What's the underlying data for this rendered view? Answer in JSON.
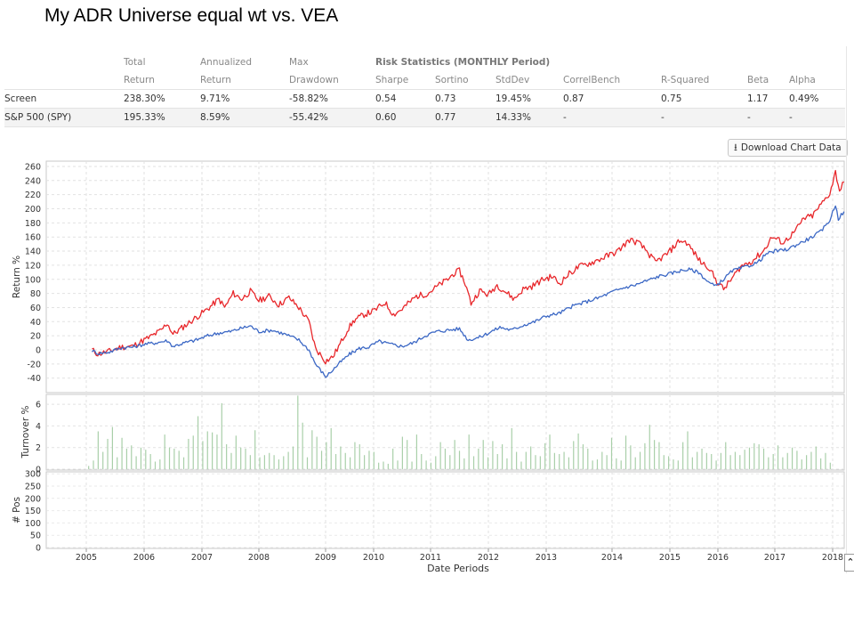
{
  "slide_title": "My ADR Universe equal wt vs. VEA",
  "stats_table": {
    "header_row1": [
      "",
      "Total",
      "Annualized",
      "Max",
      "Risk Statistics (MONTHLY Period)",
      "",
      "",
      "",
      "",
      "",
      ""
    ],
    "header_row2": [
      "",
      "Return",
      "Return",
      "Drawdown",
      "Sharpe",
      "Sortino",
      "StdDev",
      "CorrelBench",
      "R-Squared",
      "Beta",
      "Alpha"
    ],
    "rows": [
      [
        "Screen",
        "238.30%",
        "9.71%",
        "-58.82%",
        "0.54",
        "0.73",
        "19.45%",
        "0.87",
        "0.75",
        "1.17",
        "0.49%"
      ],
      [
        "S&P 500 (SPY)",
        "195.33%",
        "8.59%",
        "-55.42%",
        "0.60",
        "0.77",
        "14.33%",
        "-",
        "-",
        "-",
        "-"
      ]
    ]
  },
  "download_button": {
    "label": "Download Chart Data",
    "icon": "download-icon"
  },
  "colors": {
    "screen": "#e8272b",
    "benchmark": "#3c68c5",
    "turnover": "#a9cfa9",
    "positions": "#d9d9d9",
    "grid": "#e2e2e2"
  },
  "chart_data": [
    {
      "type": "line",
      "ylabel": "Return %",
      "ylim": [
        -50,
        265
      ],
      "yticks": [
        "260",
        "240",
        "220",
        "200",
        "180",
        "160",
        "140",
        "120",
        "100",
        "80",
        "60",
        "40",
        "20",
        "0",
        "-20",
        "-40"
      ],
      "grid": true,
      "series": [
        {
          "color": "#e8272b",
          "points": [
            [
              2004.95,
              -3
            ],
            [
              2005.1,
              0
            ],
            [
              2005.2,
              -6
            ],
            [
              2005.4,
              -2
            ],
            [
              2005.6,
              4
            ],
            [
              2005.8,
              5
            ],
            [
              2005.95,
              12
            ],
            [
              2006.1,
              18
            ],
            [
              2006.3,
              28
            ],
            [
              2006.4,
              38
            ],
            [
              2006.5,
              22
            ],
            [
              2006.7,
              34
            ],
            [
              2006.9,
              46
            ],
            [
              2007.1,
              58
            ],
            [
              2007.3,
              72
            ],
            [
              2007.4,
              60
            ],
            [
              2007.55,
              80
            ],
            [
              2007.7,
              72
            ],
            [
              2007.85,
              83
            ],
            [
              2008.0,
              70
            ],
            [
              2008.15,
              76
            ],
            [
              2008.3,
              64
            ],
            [
              2008.45,
              74
            ],
            [
              2008.6,
              60
            ],
            [
              2008.75,
              40
            ],
            [
              2008.85,
              2
            ],
            [
              2009.0,
              -16
            ],
            [
              2009.15,
              -10
            ],
            [
              2009.3,
              8
            ],
            [
              2009.45,
              28
            ],
            [
              2009.6,
              42
            ],
            [
              2009.8,
              50
            ],
            [
              2010.0,
              55
            ],
            [
              2010.2,
              67
            ],
            [
              2010.35,
              50
            ],
            [
              2010.5,
              58
            ],
            [
              2010.75,
              76
            ],
            [
              2010.95,
              80
            ],
            [
              2011.15,
              92
            ],
            [
              2011.3,
              100
            ],
            [
              2011.4,
              108
            ],
            [
              2011.5,
              112
            ],
            [
              2011.6,
              94
            ],
            [
              2011.7,
              66
            ],
            [
              2011.85,
              84
            ],
            [
              2012.0,
              78
            ],
            [
              2012.15,
              92
            ],
            [
              2012.3,
              82
            ],
            [
              2012.45,
              72
            ],
            [
              2012.6,
              86
            ],
            [
              2012.75,
              90
            ],
            [
              2012.95,
              100
            ],
            [
              2013.1,
              104
            ],
            [
              2013.2,
              94
            ],
            [
              2013.35,
              108
            ],
            [
              2013.5,
              118
            ],
            [
              2013.7,
              124
            ],
            [
              2013.9,
              132
            ],
            [
              2014.1,
              140
            ],
            [
              2014.3,
              156
            ],
            [
              2014.45,
              152
            ],
            [
              2014.6,
              140
            ],
            [
              2014.75,
              124
            ],
            [
              2014.95,
              136
            ],
            [
              2015.2,
              155
            ],
            [
              2015.35,
              152
            ],
            [
              2015.5,
              138
            ],
            [
              2015.65,
              124
            ],
            [
              2015.8,
              118
            ],
            [
              2015.95,
              100
            ],
            [
              2016.1,
              86
            ],
            [
              2016.2,
              96
            ],
            [
              2016.4,
              118
            ],
            [
              2016.6,
              126
            ],
            [
              2016.8,
              140
            ],
            [
              2016.95,
              160
            ],
            [
              2017.15,
              152
            ],
            [
              2017.35,
              168
            ],
            [
              2017.5,
              186
            ],
            [
              2017.65,
              190
            ],
            [
              2017.8,
              206
            ],
            [
              2017.95,
              222
            ],
            [
              2018.05,
              252
            ],
            [
              2018.12,
              226
            ],
            [
              2018.2,
              238
            ]
          ]
        },
        {
          "color": "#3c68c5",
          "points": [
            [
              2004.95,
              -2
            ],
            [
              2005.1,
              -1
            ],
            [
              2005.2,
              -5
            ],
            [
              2005.4,
              -3
            ],
            [
              2005.6,
              3
            ],
            [
              2005.8,
              4
            ],
            [
              2006.0,
              8
            ],
            [
              2006.2,
              10
            ],
            [
              2006.4,
              13
            ],
            [
              2006.5,
              5
            ],
            [
              2006.7,
              10
            ],
            [
              2006.9,
              14
            ],
            [
              2007.1,
              20
            ],
            [
              2007.3,
              24
            ],
            [
              2007.5,
              26
            ],
            [
              2007.7,
              31
            ],
            [
              2007.85,
              34
            ],
            [
              2008.0,
              26
            ],
            [
              2008.2,
              28
            ],
            [
              2008.4,
              22
            ],
            [
              2008.6,
              14
            ],
            [
              2008.75,
              0
            ],
            [
              2008.85,
              -20
            ],
            [
              2009.0,
              -38
            ],
            [
              2009.1,
              -32
            ],
            [
              2009.3,
              -18
            ],
            [
              2009.5,
              -6
            ],
            [
              2009.7,
              2
            ],
            [
              2009.9,
              4
            ],
            [
              2010.1,
              12
            ],
            [
              2010.3,
              8
            ],
            [
              2010.5,
              5
            ],
            [
              2010.7,
              10
            ],
            [
              2010.9,
              20
            ],
            [
              2011.1,
              26
            ],
            [
              2011.3,
              28
            ],
            [
              2011.5,
              30
            ],
            [
              2011.65,
              14
            ],
            [
              2011.85,
              18
            ],
            [
              2012.0,
              24
            ],
            [
              2012.2,
              32
            ],
            [
              2012.4,
              28
            ],
            [
              2012.6,
              35
            ],
            [
              2012.8,
              40
            ],
            [
              2013.0,
              48
            ],
            [
              2013.2,
              52
            ],
            [
              2013.4,
              62
            ],
            [
              2013.6,
              68
            ],
            [
              2013.8,
              74
            ],
            [
              2014.0,
              82
            ],
            [
              2014.2,
              88
            ],
            [
              2014.4,
              92
            ],
            [
              2014.6,
              98
            ],
            [
              2014.8,
              104
            ],
            [
              2015.0,
              108
            ],
            [
              2015.2,
              112
            ],
            [
              2015.4,
              114
            ],
            [
              2015.6,
              110
            ],
            [
              2015.8,
              96
            ],
            [
              2015.95,
              90
            ],
            [
              2016.1,
              100
            ],
            [
              2016.25,
              112
            ],
            [
              2016.5,
              118
            ],
            [
              2016.7,
              124
            ],
            [
              2016.85,
              136
            ],
            [
              2017.0,
              140
            ],
            [
              2017.2,
              142
            ],
            [
              2017.4,
              150
            ],
            [
              2017.6,
              158
            ],
            [
              2017.8,
              168
            ],
            [
              2017.95,
              184
            ],
            [
              2018.05,
              206
            ],
            [
              2018.1,
              186
            ],
            [
              2018.2,
              196
            ]
          ]
        }
      ]
    },
    {
      "type": "bar",
      "ylabel": "Turnover %",
      "ylim": [
        0,
        7
      ],
      "yticks": [
        "6",
        "4",
        "2",
        "0"
      ],
      "values": [
        0.3,
        0.8,
        3.5,
        1.6,
        2.8,
        3.9,
        1.1,
        2.9,
        1.9,
        2.2,
        1.2,
        2.0,
        1.8,
        1.4,
        0.7,
        0.9,
        3.2,
        2.0,
        1.9,
        1.7,
        1.1,
        2.8,
        3.1,
        4.9,
        2.6,
        3.5,
        3.4,
        3.2,
        6.1,
        2.3,
        1.5,
        3.1,
        2.0,
        1.9,
        1.3,
        3.6,
        1.1,
        1.3,
        1.5,
        1.3,
        0.9,
        1.2,
        1.6,
        2.1,
        6.8,
        4.3,
        1.1,
        3.6,
        3.0,
        1.7,
        2.5,
        3.8,
        1.4,
        2.1,
        1.5,
        1.1,
        2.5,
        2.3,
        1.3,
        1.7,
        1.6,
        0.6,
        0.7,
        0.5,
        1.9,
        0.8,
        3.0,
        2.7,
        0.7,
        3.2,
        1.4,
        0.8,
        0.6,
        1.2,
        2.5,
        1.9,
        1.3,
        2.7,
        1.7,
        1.0,
        3.2,
        1.2,
        1.9,
        2.7,
        1.1,
        2.6,
        1.4,
        2.3,
        1.0,
        3.8,
        1.6,
        0.7,
        1.6,
        2.1,
        1.3,
        1.2,
        2.4,
        3.2,
        1.5,
        1.4,
        1.6,
        1.1,
        2.6,
        3.3,
        2.3,
        1.9,
        0.8,
        0.9,
        1.6,
        1.3,
        2.9,
        1.0,
        0.8,
        3.1,
        2.2,
        1.1,
        1.6,
        2.4,
        4.1,
        2.7,
        2.5,
        1.3,
        1.2,
        0.9,
        0.8,
        2.5,
        3.5,
        1.1,
        1.6,
        1.9,
        1.5,
        1.4,
        0.8,
        1.5,
        2.5,
        1.3,
        1.6,
        1.3,
        1.8,
        2.0,
        2.4,
        2.3,
        1.9,
        1.1,
        1.4,
        2.2,
        1.1,
        1.5,
        2.0,
        1.7,
        0.9,
        1.3,
        1.6,
        2.1,
        1.0,
        1.5,
        0.6
      ]
    },
    {
      "type": "area",
      "ylabel": "# Pos",
      "xlabel": "Date Periods",
      "ylim": [
        0,
        300
      ],
      "yticks": [
        "300",
        "250",
        "200",
        "150",
        "100",
        "50",
        "0"
      ],
      "xticks": [
        "2005",
        "2006",
        "2007",
        "2008",
        "2009",
        "2010",
        "2011",
        "2012",
        "2013",
        "2014",
        "2015",
        "2016",
        "2017",
        "2018"
      ],
      "points": [
        [
          2004.95,
          265
        ],
        [
          2005.0,
          285
        ],
        [
          2005.1,
          292
        ],
        [
          2005.3,
          290
        ],
        [
          2005.5,
          282
        ],
        [
          2006.0,
          276
        ],
        [
          2006.5,
          277
        ],
        [
          2007.0,
          275
        ],
        [
          2007.4,
          274
        ],
        [
          2007.45,
          265
        ],
        [
          2007.6,
          258
        ],
        [
          2008.0,
          230
        ],
        [
          2008.4,
          215
        ],
        [
          2008.8,
          207
        ],
        [
          2009.0,
          198
        ],
        [
          2009.05,
          188
        ],
        [
          2009.3,
          186
        ],
        [
          2009.8,
          182
        ],
        [
          2010.0,
          180
        ],
        [
          2010.5,
          182
        ],
        [
          2011.0,
          176
        ],
        [
          2011.5,
          178
        ],
        [
          2012.0,
          174
        ],
        [
          2012.5,
          170
        ],
        [
          2012.8,
          160
        ],
        [
          2013.0,
          165
        ],
        [
          2013.5,
          170
        ],
        [
          2014.0,
          175
        ],
        [
          2014.3,
          176
        ],
        [
          2014.5,
          168
        ],
        [
          2015.0,
          170
        ],
        [
          2015.5,
          172
        ],
        [
          2016.0,
          170
        ],
        [
          2016.5,
          168
        ],
        [
          2017.0,
          164
        ],
        [
          2017.5,
          168
        ],
        [
          2018.0,
          170
        ],
        [
          2018.2,
          172
        ]
      ]
    }
  ]
}
